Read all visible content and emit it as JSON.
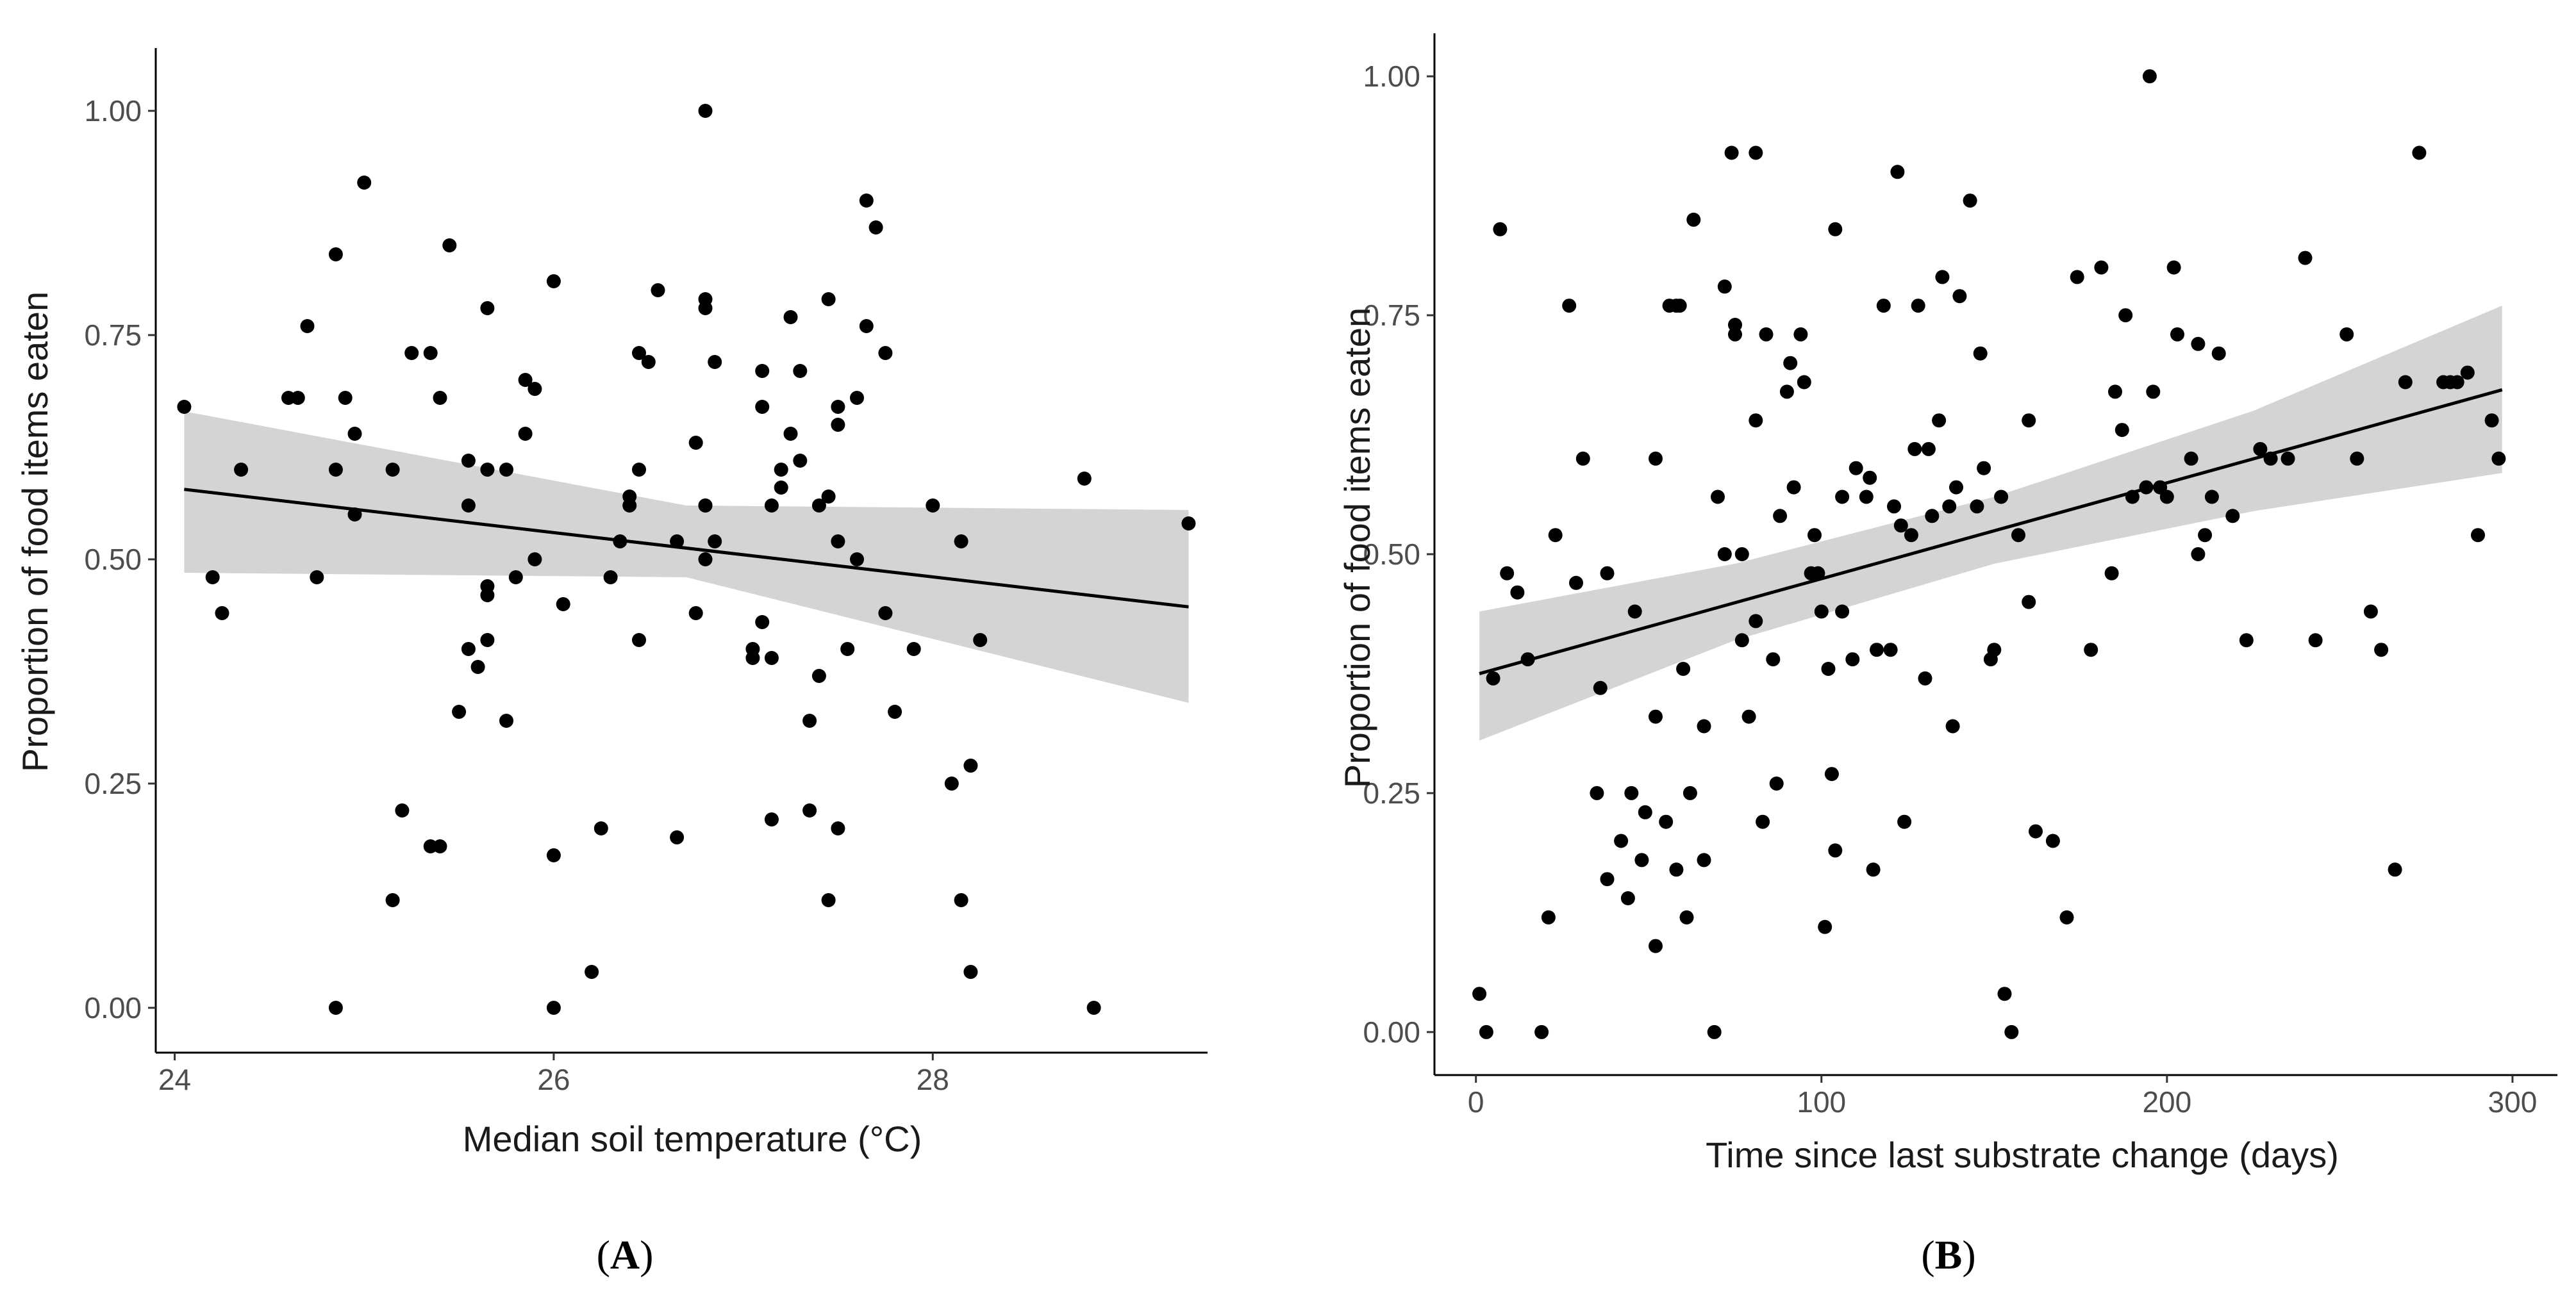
{
  "chart_data": [
    {
      "type": "scatter",
      "panel_label": "A",
      "xlabel": "Median soil temperature (°C)",
      "ylabel": "Proportion of food items eaten",
      "xlim": [
        23.9,
        29.45
      ],
      "ylim": [
        -0.05,
        1.07
      ],
      "xticks": [
        24,
        26,
        28
      ],
      "xtick_labels": [
        "24",
        "26",
        "28"
      ],
      "yticks": [
        0,
        0.25,
        0.5,
        0.75,
        1.0
      ],
      "ytick_labels": [
        "0.00",
        "0.25",
        "0.50",
        "0.75",
        "1.00"
      ],
      "grid": false,
      "trend": {
        "x": [
          24.05,
          29.35
        ],
        "y": [
          0.578,
          0.447
        ]
      },
      "band": {
        "x": [
          24.05,
          26.7,
          29.35
        ],
        "lower": [
          0.485,
          0.48,
          0.34
        ],
        "upper": [
          0.665,
          0.56,
          0.555
        ]
      },
      "points": [
        [
          24.05,
          0.67
        ],
        [
          24.2,
          0.48
        ],
        [
          24.25,
          0.44
        ],
        [
          24.35,
          0.6
        ],
        [
          24.6,
          0.68
        ],
        [
          24.65,
          0.68
        ],
        [
          24.7,
          0.76
        ],
        [
          24.75,
          0.48
        ],
        [
          24.85,
          0.0
        ],
        [
          24.85,
          0.6
        ],
        [
          24.85,
          0.84
        ],
        [
          24.9,
          0.68
        ],
        [
          24.95,
          0.55
        ],
        [
          24.95,
          0.64
        ],
        [
          25.0,
          0.92
        ],
        [
          25.15,
          0.6
        ],
        [
          25.15,
          0.12
        ],
        [
          25.2,
          0.22
        ],
        [
          25.25,
          0.73
        ],
        [
          25.35,
          0.73
        ],
        [
          25.35,
          0.18
        ],
        [
          25.4,
          0.68
        ],
        [
          25.4,
          0.18
        ],
        [
          25.45,
          0.85
        ],
        [
          25.5,
          0.33
        ],
        [
          25.55,
          0.4
        ],
        [
          25.55,
          0.56
        ],
        [
          25.55,
          0.61
        ],
        [
          25.6,
          0.38
        ],
        [
          25.65,
          0.6
        ],
        [
          25.65,
          0.78
        ],
        [
          25.65,
          0.47
        ],
        [
          25.65,
          0.46
        ],
        [
          25.65,
          0.41
        ],
        [
          25.75,
          0.6
        ],
        [
          25.75,
          0.32
        ],
        [
          25.8,
          0.48
        ],
        [
          25.85,
          0.64
        ],
        [
          25.85,
          0.7
        ],
        [
          25.9,
          0.69
        ],
        [
          25.9,
          0.5
        ],
        [
          26.0,
          0.81
        ],
        [
          26.0,
          0.17
        ],
        [
          26.0,
          0.0
        ],
        [
          26.05,
          0.45
        ],
        [
          26.2,
          0.04
        ],
        [
          26.25,
          0.2
        ],
        [
          26.3,
          0.48
        ],
        [
          26.35,
          0.52
        ],
        [
          26.4,
          0.56
        ],
        [
          26.4,
          0.57
        ],
        [
          26.45,
          0.6
        ],
        [
          26.45,
          0.41
        ],
        [
          26.45,
          0.73
        ],
        [
          26.5,
          0.72
        ],
        [
          26.55,
          0.8
        ],
        [
          26.65,
          0.52
        ],
        [
          26.65,
          0.19
        ],
        [
          26.75,
          0.63
        ],
        [
          26.75,
          0.44
        ],
        [
          26.8,
          0.5
        ],
        [
          26.8,
          0.56
        ],
        [
          26.8,
          0.56
        ],
        [
          26.8,
          0.78
        ],
        [
          26.8,
          0.79
        ],
        [
          26.8,
          1.0
        ],
        [
          26.85,
          0.52
        ],
        [
          26.85,
          0.72
        ],
        [
          27.05,
          0.4
        ],
        [
          27.05,
          0.39
        ],
        [
          27.1,
          0.67
        ],
        [
          27.1,
          0.71
        ],
        [
          27.1,
          0.43
        ],
        [
          27.15,
          0.21
        ],
        [
          27.15,
          0.56
        ],
        [
          27.15,
          0.39
        ],
        [
          27.2,
          0.58
        ],
        [
          27.2,
          0.6
        ],
        [
          27.25,
          0.77
        ],
        [
          27.25,
          0.64
        ],
        [
          27.3,
          0.71
        ],
        [
          27.3,
          0.61
        ],
        [
          27.35,
          0.32
        ],
        [
          27.35,
          0.22
        ],
        [
          27.4,
          0.56
        ],
        [
          27.4,
          0.37
        ],
        [
          27.45,
          0.57
        ],
        [
          27.45,
          0.79
        ],
        [
          27.45,
          0.12
        ],
        [
          27.5,
          0.52
        ],
        [
          27.5,
          0.65
        ],
        [
          27.5,
          0.67
        ],
        [
          27.5,
          0.2
        ],
        [
          27.55,
          0.4
        ],
        [
          27.6,
          0.68
        ],
        [
          27.6,
          0.5
        ],
        [
          27.65,
          0.9
        ],
        [
          27.65,
          0.76
        ],
        [
          27.7,
          0.87
        ],
        [
          27.75,
          0.73
        ],
        [
          27.75,
          0.44
        ],
        [
          27.8,
          0.33
        ],
        [
          27.9,
          0.4
        ],
        [
          28.0,
          0.56
        ],
        [
          28.1,
          0.25
        ],
        [
          28.15,
          0.52
        ],
        [
          28.15,
          0.12
        ],
        [
          28.2,
          0.04
        ],
        [
          28.2,
          0.27
        ],
        [
          28.25,
          0.41
        ],
        [
          28.8,
          0.59
        ],
        [
          28.85,
          0.0
        ],
        [
          29.35,
          0.54
        ]
      ]
    },
    {
      "type": "scatter",
      "panel_label": "B",
      "xlabel": "Time since last substrate change (days)",
      "ylabel": "Proportion of food items eaten",
      "xlim": [
        -12,
        313
      ],
      "ylim": [
        -0.045,
        1.045
      ],
      "xticks": [
        0,
        100,
        200,
        300
      ],
      "xtick_labels": [
        "0",
        "100",
        "200",
        "300"
      ],
      "yticks": [
        0,
        0.25,
        0.5,
        0.75,
        1.0
      ],
      "ytick_labels": [
        "0.00",
        "0.25",
        "0.50",
        "0.75",
        "1.00"
      ],
      "grid": false,
      "trend": {
        "x": [
          1,
          297
        ],
        "y": [
          0.375,
          0.672
        ]
      },
      "band": {
        "x": [
          1,
          75,
          150,
          225,
          297
        ],
        "lower": [
          0.305,
          0.41,
          0.49,
          0.545,
          0.585
        ],
        "upper": [
          0.44,
          0.49,
          0.56,
          0.65,
          0.76
        ]
      },
      "points": [
        [
          1,
          0.04
        ],
        [
          3,
          0.0
        ],
        [
          5,
          0.37
        ],
        [
          7,
          0.84
        ],
        [
          9,
          0.48
        ],
        [
          12,
          0.46
        ],
        [
          15,
          0.39
        ],
        [
          19,
          0.0
        ],
        [
          21,
          0.12
        ],
        [
          23,
          0.52
        ],
        [
          27,
          0.76
        ],
        [
          29,
          0.47
        ],
        [
          31,
          0.6
        ],
        [
          35,
          0.25
        ],
        [
          36,
          0.36
        ],
        [
          38,
          0.48
        ],
        [
          38,
          0.16
        ],
        [
          42,
          0.2
        ],
        [
          44,
          0.14
        ],
        [
          45,
          0.25
        ],
        [
          46,
          0.44
        ],
        [
          48,
          0.18
        ],
        [
          49,
          0.23
        ],
        [
          52,
          0.33
        ],
        [
          52,
          0.6
        ],
        [
          52,
          0.09
        ],
        [
          55,
          0.22
        ],
        [
          56,
          0.76
        ],
        [
          58,
          0.76
        ],
        [
          58,
          0.17
        ],
        [
          59,
          0.76
        ],
        [
          60,
          0.38
        ],
        [
          61,
          0.12
        ],
        [
          62,
          0.25
        ],
        [
          63,
          0.85
        ],
        [
          66,
          0.18
        ],
        [
          66,
          0.32
        ],
        [
          69,
          0.0
        ],
        [
          70,
          0.56
        ],
        [
          72,
          0.78
        ],
        [
          72,
          0.5
        ],
        [
          74,
          0.92
        ],
        [
          75,
          0.74
        ],
        [
          75,
          0.73
        ],
        [
          77,
          0.41
        ],
        [
          77,
          0.5
        ],
        [
          79,
          0.33
        ],
        [
          81,
          0.43
        ],
        [
          81,
          0.64
        ],
        [
          81,
          0.92
        ],
        [
          83,
          0.22
        ],
        [
          84,
          0.73
        ],
        [
          86,
          0.39
        ],
        [
          87,
          0.26
        ],
        [
          88,
          0.54
        ],
        [
          90,
          0.67
        ],
        [
          91,
          0.7
        ],
        [
          92,
          0.57
        ],
        [
          94,
          0.73
        ],
        [
          95,
          0.68
        ],
        [
          97,
          0.48
        ],
        [
          98,
          0.52
        ],
        [
          99,
          0.48
        ],
        [
          100,
          0.44
        ],
        [
          101,
          0.11
        ],
        [
          102,
          0.38
        ],
        [
          103,
          0.27
        ],
        [
          104,
          0.19
        ],
        [
          104,
          0.84
        ],
        [
          106,
          0.44
        ],
        [
          106,
          0.56
        ],
        [
          109,
          0.39
        ],
        [
          110,
          0.59
        ],
        [
          113,
          0.56
        ],
        [
          114,
          0.58
        ],
        [
          115,
          0.17
        ],
        [
          116,
          0.4
        ],
        [
          118,
          0.76
        ],
        [
          120,
          0.4
        ],
        [
          121,
          0.55
        ],
        [
          122,
          0.9
        ],
        [
          123,
          0.53
        ],
        [
          124,
          0.22
        ],
        [
          126,
          0.52
        ],
        [
          127,
          0.61
        ],
        [
          128,
          0.76
        ],
        [
          130,
          0.37
        ],
        [
          131,
          0.61
        ],
        [
          132,
          0.54
        ],
        [
          134,
          0.64
        ],
        [
          135,
          0.79
        ],
        [
          137,
          0.55
        ],
        [
          138,
          0.32
        ],
        [
          139,
          0.57
        ],
        [
          140,
          0.77
        ],
        [
          143,
          0.87
        ],
        [
          145,
          0.55
        ],
        [
          146,
          0.71
        ],
        [
          147,
          0.59
        ],
        [
          149,
          0.39
        ],
        [
          150,
          0.4
        ],
        [
          152,
          0.56
        ],
        [
          153,
          0.04
        ],
        [
          155,
          0.0
        ],
        [
          157,
          0.52
        ],
        [
          160,
          0.64
        ],
        [
          160,
          0.45
        ],
        [
          162,
          0.21
        ],
        [
          167,
          0.2
        ],
        [
          171,
          0.12
        ],
        [
          174,
          0.79
        ],
        [
          178,
          0.4
        ],
        [
          181,
          0.8
        ],
        [
          184,
          0.48
        ],
        [
          185,
          0.67
        ],
        [
          187,
          0.63
        ],
        [
          188,
          0.75
        ],
        [
          190,
          0.56
        ],
        [
          194,
          0.57
        ],
        [
          195,
          1.0
        ],
        [
          196,
          0.67
        ],
        [
          198,
          0.57
        ],
        [
          200,
          0.56
        ],
        [
          202,
          0.8
        ],
        [
          203,
          0.73
        ],
        [
          207,
          0.6
        ],
        [
          209,
          0.5
        ],
        [
          209,
          0.72
        ],
        [
          211,
          0.52
        ],
        [
          213,
          0.56
        ],
        [
          215,
          0.71
        ],
        [
          219,
          0.54
        ],
        [
          223,
          0.41
        ],
        [
          227,
          0.61
        ],
        [
          230,
          0.6
        ],
        [
          235,
          0.6
        ],
        [
          240,
          0.81
        ],
        [
          243,
          0.41
        ],
        [
          252,
          0.73
        ],
        [
          255,
          0.6
        ],
        [
          259,
          0.44
        ],
        [
          262,
          0.4
        ],
        [
          266,
          0.17
        ],
        [
          269,
          0.68
        ],
        [
          273,
          0.92
        ],
        [
          280,
          0.68
        ],
        [
          282,
          0.68
        ],
        [
          284,
          0.68
        ],
        [
          287,
          0.69
        ],
        [
          290,
          0.52
        ],
        [
          294,
          0.64
        ],
        [
          296,
          0.6
        ]
      ]
    }
  ]
}
